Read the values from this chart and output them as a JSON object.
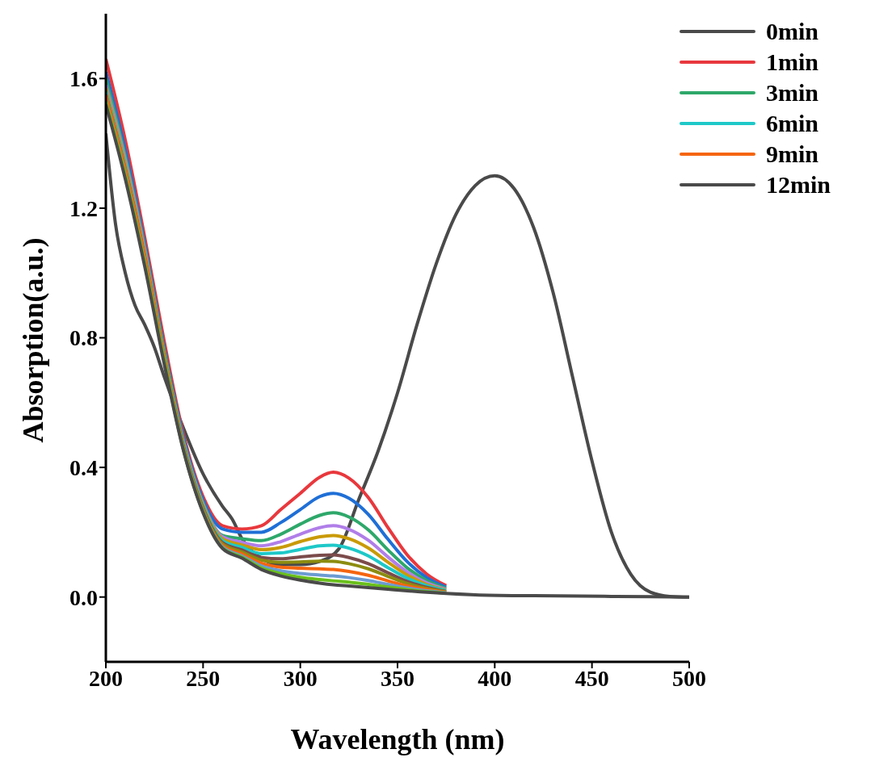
{
  "chart_data": {
    "type": "line",
    "xlabel": "Wavelength (nm)",
    "ylabel": "Absorption(a.u.)",
    "x": [
      200,
      210,
      220,
      230,
      240,
      250,
      260,
      270,
      280,
      290,
      300,
      310,
      317,
      325,
      335,
      345,
      355,
      365,
      375,
      390,
      420,
      460,
      500
    ],
    "xlim": [
      200,
      500
    ],
    "xticks": [
      200,
      250,
      300,
      350,
      400,
      450,
      500
    ],
    "ylim": [
      -0.2,
      1.8
    ],
    "yticks": [
      {
        "value": 0,
        "label": "0.0"
      },
      0.4,
      0.8,
      1.2,
      1.6
    ],
    "grid": false,
    "legend": "top right",
    "marker": "none",
    "line_style": "solid",
    "series": [
      {
        "name": "0min",
        "color": "#4a4a4a",
        "x": [
          200,
          205,
          210,
          215,
          220,
          225,
          230,
          240,
          250,
          260,
          265,
          270,
          280,
          290,
          300,
          310,
          320,
          330,
          340,
          350,
          360,
          370,
          380,
          390,
          400,
          410,
          420,
          430,
          440,
          450,
          460,
          470,
          480,
          490,
          500
        ],
        "values": [
          1.43,
          1.15,
          1.0,
          0.9,
          0.84,
          0.77,
          0.68,
          0.52,
          0.38,
          0.28,
          0.24,
          0.18,
          0.12,
          0.1,
          0.1,
          0.11,
          0.15,
          0.3,
          0.45,
          0.63,
          0.84,
          1.03,
          1.18,
          1.27,
          1.3,
          1.26,
          1.14,
          0.94,
          0.68,
          0.42,
          0.2,
          0.07,
          0.015,
          0.002,
          0
        ]
      },
      {
        "name": "1min",
        "color": "#e8383d",
        "values": [
          1.66,
          1.41,
          1.11,
          0.79,
          0.5,
          0.31,
          0.22,
          0.21,
          0.22,
          0.27,
          0.32,
          0.37,
          0.385,
          0.367,
          0.307,
          0.215,
          0.13,
          0.071,
          0.035,
          null,
          null,
          null,
          null
        ]
      },
      {
        "color": "#1f6fd6",
        "values": [
          1.62,
          1.38,
          1.09,
          0.77,
          0.49,
          0.3,
          0.21,
          0.2,
          0.2,
          0.23,
          0.27,
          0.31,
          0.32,
          0.305,
          0.255,
          0.179,
          0.109,
          0.06,
          0.031,
          null,
          null,
          null,
          null
        ]
      },
      {
        "name": "3min",
        "color": "#2ea86a",
        "values": [
          1.6,
          1.36,
          1.08,
          0.76,
          0.48,
          0.29,
          0.19,
          0.18,
          0.174,
          0.194,
          0.225,
          0.252,
          0.26,
          0.247,
          0.207,
          0.146,
          0.09,
          0.051,
          0.027,
          null,
          null,
          null,
          null
        ]
      },
      {
        "color": "#b07ee8",
        "values": [
          1.58,
          1.35,
          1.07,
          0.75,
          0.477,
          0.287,
          0.186,
          0.169,
          0.158,
          0.171,
          0.194,
          0.214,
          0.22,
          0.209,
          0.175,
          0.124,
          0.077,
          0.044,
          0.024,
          null,
          null,
          null,
          null
        ]
      },
      {
        "color": "#c99a06",
        "values": [
          1.57,
          1.34,
          1.06,
          0.75,
          0.473,
          0.283,
          0.18,
          0.161,
          0.146,
          0.153,
          0.171,
          0.186,
          0.19,
          0.18,
          0.151,
          0.108,
          0.068,
          0.039,
          0.022,
          null,
          null,
          null,
          null
        ]
      },
      {
        "name": "6min",
        "color": "#1ec8c8",
        "values": [
          1.56,
          1.33,
          1.05,
          0.74,
          0.468,
          0.278,
          0.174,
          0.153,
          0.134,
          0.136,
          0.147,
          0.158,
          0.16,
          0.151,
          0.127,
          0.091,
          0.058,
          0.035,
          0.02,
          null,
          null,
          null,
          null
        ]
      },
      {
        "color": "#7b4b4b",
        "values": [
          1.55,
          1.32,
          1.05,
          0.74,
          0.464,
          0.274,
          0.168,
          0.145,
          0.122,
          0.118,
          0.124,
          0.129,
          0.13,
          0.122,
          0.103,
          0.075,
          0.048,
          0.03,
          0.017,
          null,
          null,
          null,
          null
        ]
      },
      {
        "color": "#8c8c10",
        "values": [
          1.54,
          1.31,
          1.04,
          0.74,
          0.461,
          0.271,
          0.164,
          0.139,
          0.114,
          0.107,
          0.108,
          0.111,
          0.11,
          0.103,
          0.087,
          0.064,
          0.042,
          0.027,
          0.016,
          null,
          null,
          null,
          null
        ]
      },
      {
        "name": "9min",
        "color": "#f5650f",
        "values": [
          1.55,
          1.32,
          1.05,
          0.74,
          0.457,
          0.267,
          0.159,
          0.133,
          0.104,
          0.092,
          0.089,
          0.087,
          0.085,
          0.079,
          0.067,
          0.05,
          0.034,
          0.023,
          0.014,
          null,
          null,
          null,
          null
        ]
      },
      {
        "color": "#6b9bd2",
        "values": [
          1.53,
          1.3,
          1.03,
          0.73,
          0.454,
          0.264,
          0.155,
          0.127,
          0.096,
          0.081,
          0.073,
          0.068,
          0.065,
          0.06,
          0.051,
          0.039,
          0.028,
          0.019,
          0.013,
          null,
          null,
          null,
          null
        ]
      },
      {
        "color": "#6ac01c",
        "values": [
          1.53,
          1.3,
          1.03,
          0.73,
          0.452,
          0.262,
          0.152,
          0.123,
          0.09,
          0.072,
          0.061,
          0.054,
          0.05,
          0.046,
          0.039,
          0.031,
          0.023,
          0.017,
          0.012,
          null,
          null,
          null,
          null
        ]
      },
      {
        "name": "12min",
        "color": "#4a4a4a",
        "values": [
          1.52,
          1.29,
          1.02,
          0.72,
          0.45,
          0.26,
          0.15,
          0.12,
          0.085,
          0.065,
          0.052,
          0.043,
          0.038,
          0.034,
          0.029,
          0.024,
          0.019,
          0.015,
          0.011,
          0.007,
          0.004,
          0.002,
          0
        ]
      }
    ]
  }
}
